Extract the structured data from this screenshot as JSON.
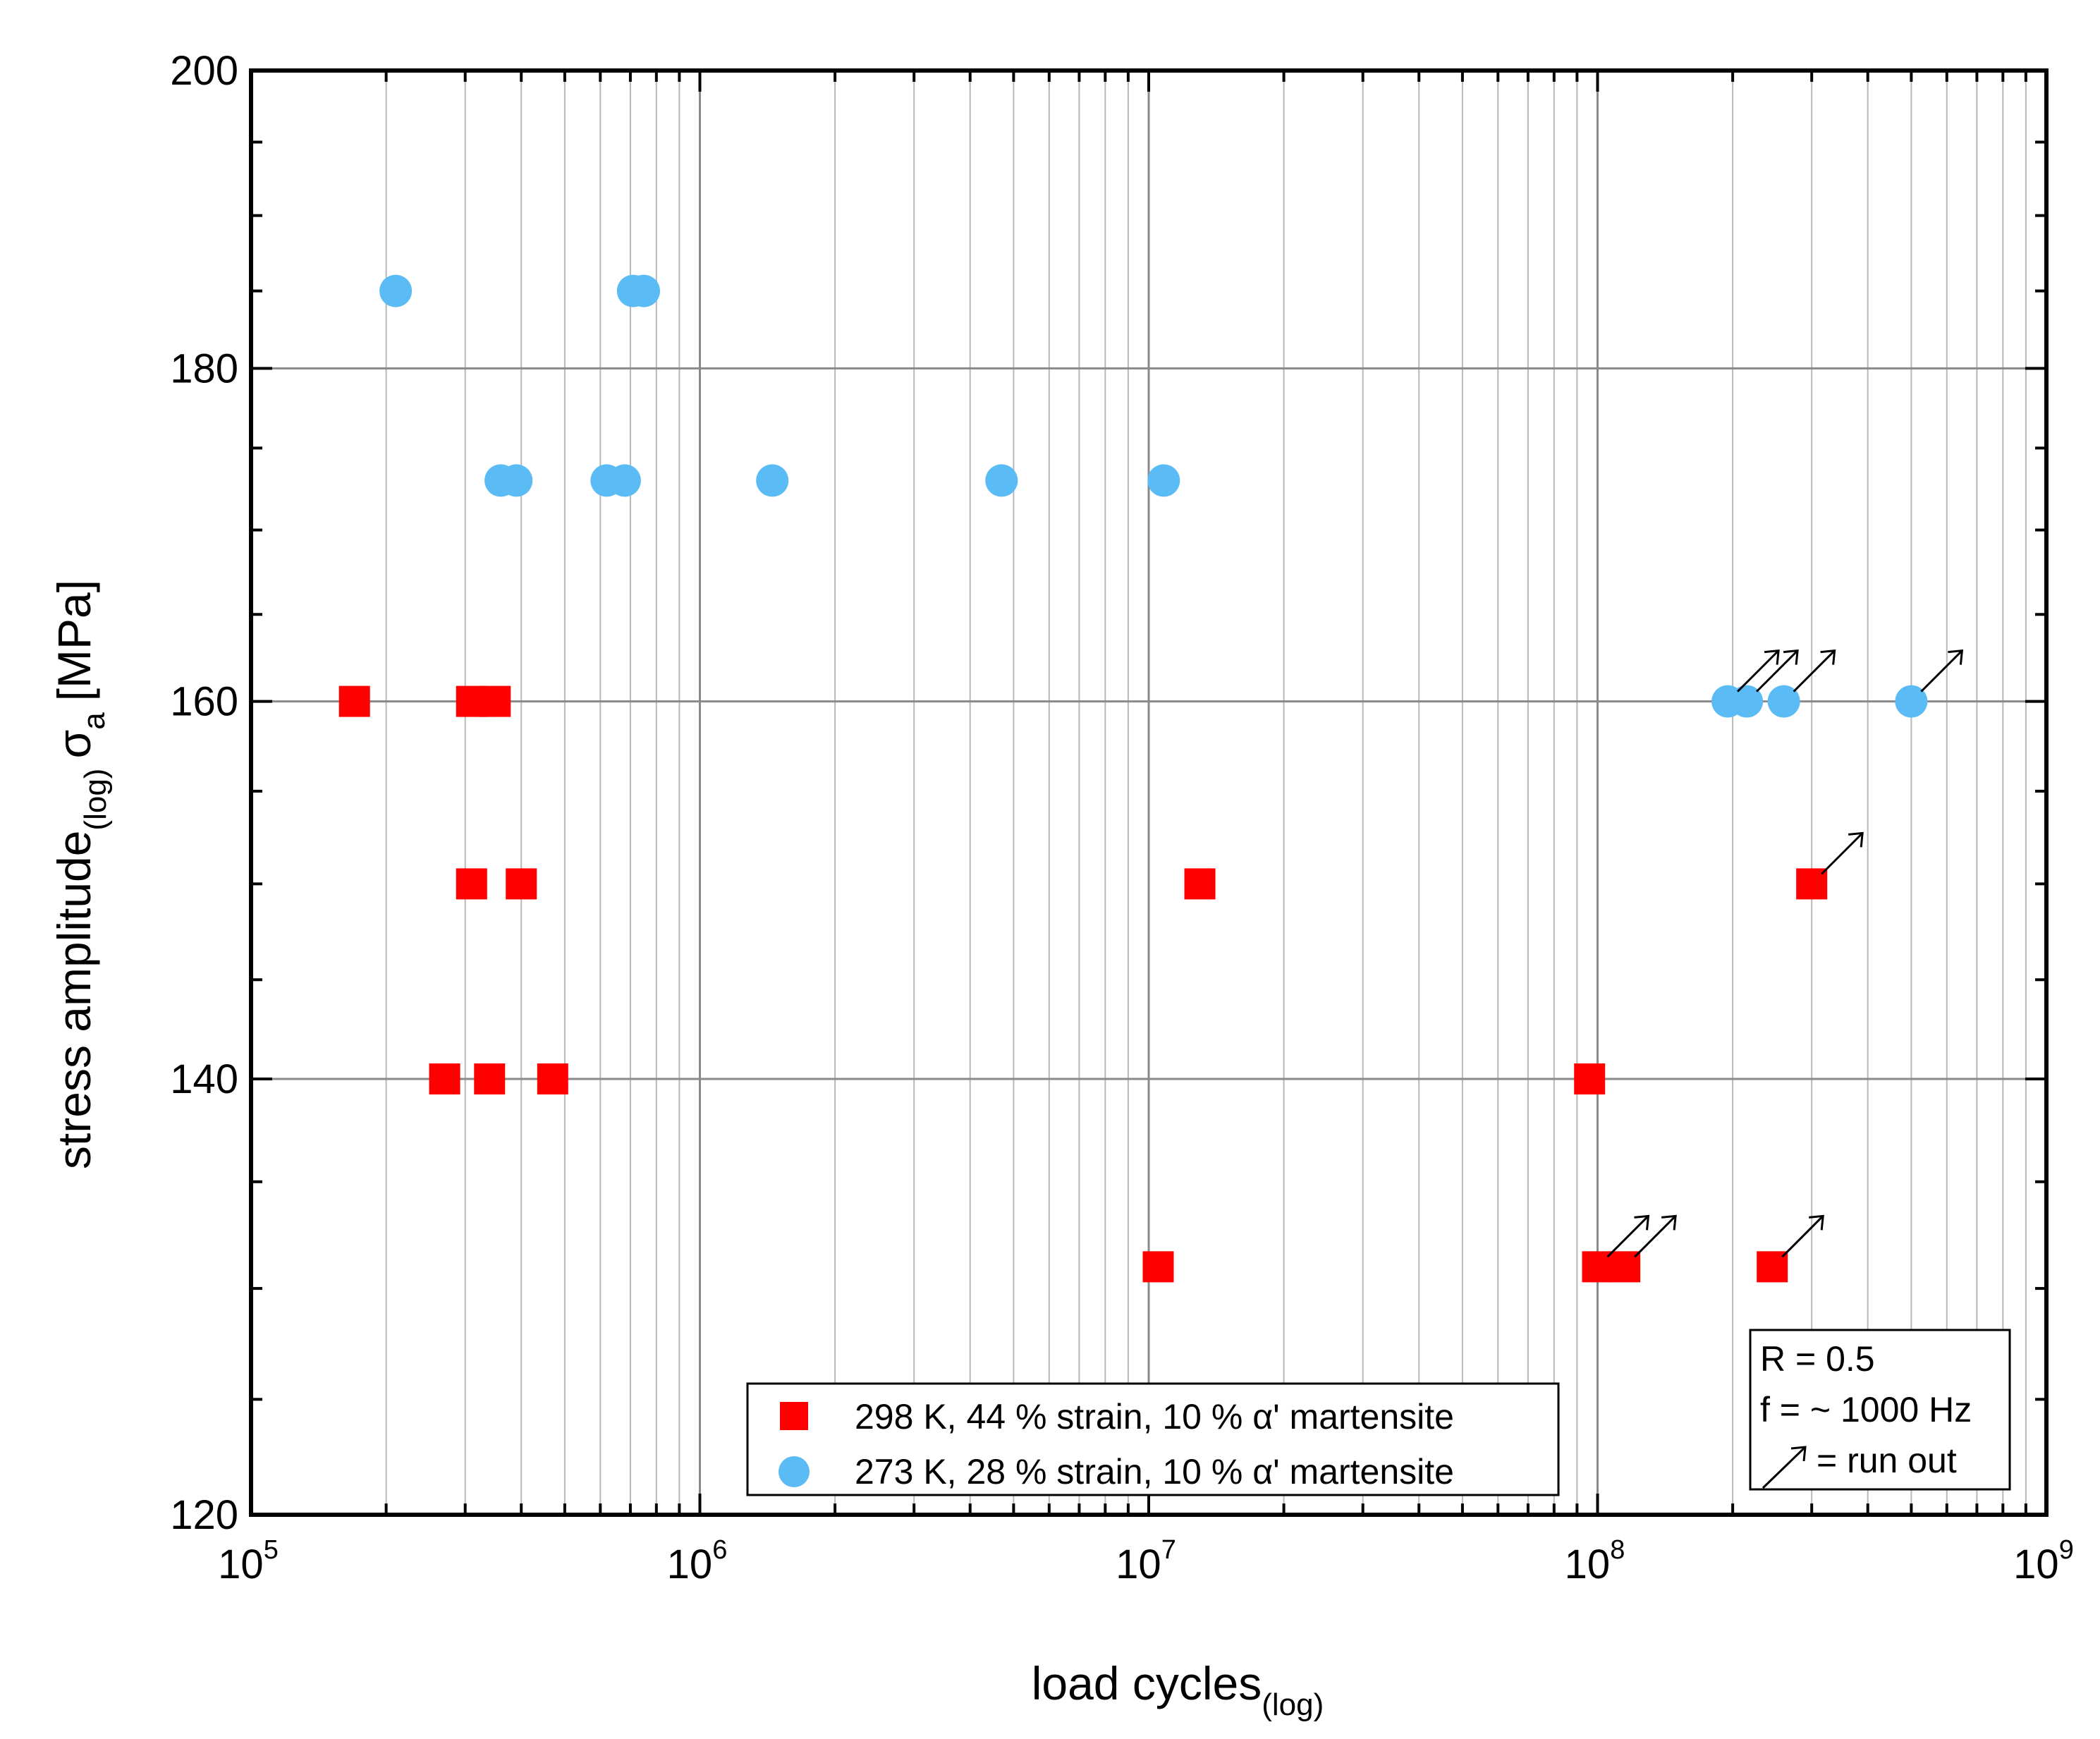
{
  "chart_data": {
    "type": "scatter",
    "title": "",
    "xlabel": {
      "main": "load cycles",
      "sub": "(log)"
    },
    "ylabel": {
      "main": "stress amplitude",
      "sub": "(log)",
      "symbol": "σ",
      "symbol_sub": "a",
      "unit": "[MPa]"
    },
    "xscale": "log",
    "yscale": "log",
    "xlim": [
      100000,
      1000000000
    ],
    "ylim": [
      120,
      200
    ],
    "x_ticks": [
      {
        "value": 100000,
        "base": "10",
        "exp": "5"
      },
      {
        "value": 1000000,
        "base": "10",
        "exp": "6"
      },
      {
        "value": 10000000,
        "base": "10",
        "exp": "7"
      },
      {
        "value": 100000000,
        "base": "10",
        "exp": "8"
      },
      {
        "value": 1000000000,
        "base": "10",
        "exp": "9"
      }
    ],
    "y_ticks": [
      {
        "value": 120,
        "label": "120"
      },
      {
        "value": 140,
        "label": "140"
      },
      {
        "value": 160,
        "label": "160"
      },
      {
        "value": 180,
        "label": "180"
      },
      {
        "value": 200,
        "label": "200"
      }
    ],
    "grid": true,
    "legend_position": "bottom-center",
    "series": [
      {
        "name": "298 K, 44 % strain, 10 % α' martensite",
        "marker": "square",
        "color": "#ff0000",
        "points": [
          {
            "x": 170000,
            "y": 160,
            "runout": false
          },
          {
            "x": 310000,
            "y": 160,
            "runout": false
          },
          {
            "x": 350000,
            "y": 160,
            "runout": false
          },
          {
            "x": 310000,
            "y": 150,
            "runout": false
          },
          {
            "x": 400000,
            "y": 150,
            "runout": false
          },
          {
            "x": 13000000,
            "y": 150,
            "runout": false
          },
          {
            "x": 300000000,
            "y": 150,
            "runout": true
          },
          {
            "x": 270000,
            "y": 140,
            "runout": false
          },
          {
            "x": 340000,
            "y": 140,
            "runout": false
          },
          {
            "x": 470000,
            "y": 140,
            "runout": false
          },
          {
            "x": 96000000,
            "y": 140,
            "runout": false
          },
          {
            "x": 10500000,
            "y": 131,
            "runout": false
          },
          {
            "x": 100000000,
            "y": 131,
            "runout": true
          },
          {
            "x": 115000000,
            "y": 131,
            "runout": true
          },
          {
            "x": 245000000,
            "y": 131,
            "runout": true
          }
        ]
      },
      {
        "name": "273 K, 28 % strain, 10 % α' martensite",
        "marker": "circle",
        "color": "#5bbcf5",
        "points": [
          {
            "x": 210000,
            "y": 185,
            "runout": false
          },
          {
            "x": 710000,
            "y": 185,
            "runout": false
          },
          {
            "x": 750000,
            "y": 185,
            "runout": false
          },
          {
            "x": 360000,
            "y": 173,
            "runout": false
          },
          {
            "x": 390000,
            "y": 173,
            "runout": false
          },
          {
            "x": 620000,
            "y": 173,
            "runout": false
          },
          {
            "x": 680000,
            "y": 173,
            "runout": false
          },
          {
            "x": 1450000,
            "y": 173,
            "runout": false
          },
          {
            "x": 4700000,
            "y": 173,
            "runout": false
          },
          {
            "x": 10800000,
            "y": 173,
            "runout": false
          },
          {
            "x": 195000000,
            "y": 160,
            "runout": true
          },
          {
            "x": 215000000,
            "y": 160,
            "runout": true
          },
          {
            "x": 260000000,
            "y": 160,
            "runout": true
          },
          {
            "x": 500000000,
            "y": 160,
            "runout": true
          }
        ]
      }
    ],
    "annotation_box": {
      "lines": [
        "R = 0.5",
        "f = ~ 1000 Hz",
        "= run out"
      ]
    }
  }
}
